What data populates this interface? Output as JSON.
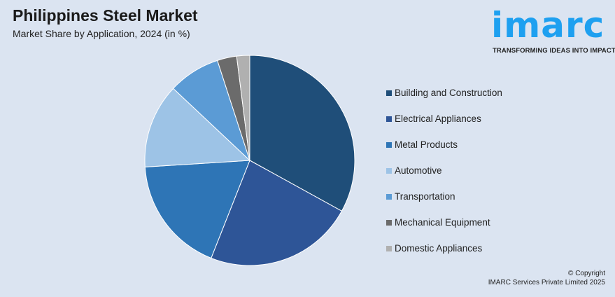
{
  "header": {
    "title": "Philippines Steel Market",
    "subtitle": "Market Share by Application, 2024 (in %)"
  },
  "logo": {
    "word": "imarc",
    "tagline": "TRANSFORMING IDEAS INTO IMPACT",
    "color": "#1ea0f0"
  },
  "chart_data": {
    "type": "pie",
    "title": "Philippines Steel Market",
    "subtitle": "Market Share by Application, 2024 (in %)",
    "legend_position": "right",
    "start_angle": "top, clockwise",
    "categories": [
      "Building and Construction",
      "Electrical Appliances",
      "Metal Products",
      "Automotive",
      "Transportation",
      "Mechanical Equipment",
      "Domestic Appliances"
    ],
    "values": [
      33,
      23,
      18,
      13,
      8,
      3,
      2
    ],
    "colors": [
      "#1f4e79",
      "#2e5597",
      "#2e75b6",
      "#9dc3e6",
      "#5b9bd5",
      "#6b6b6b",
      "#b0b0b0"
    ]
  },
  "footer": {
    "copyright_line1": "© Copyright",
    "copyright_line2": "IMARC Services Private Limited 2025"
  }
}
